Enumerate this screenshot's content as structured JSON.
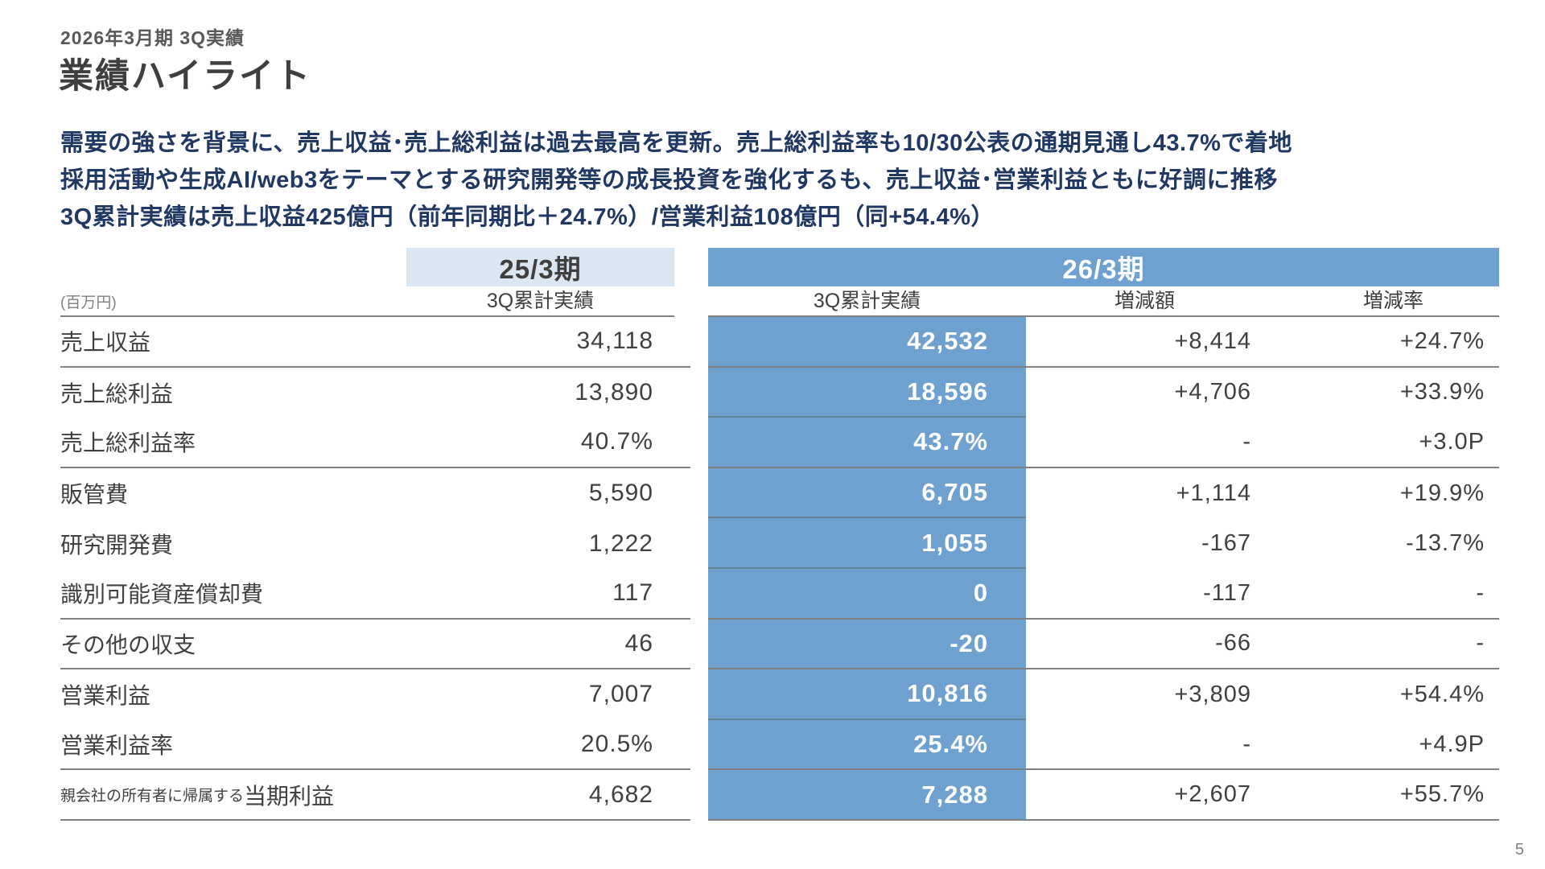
{
  "slide": {
    "eyebrow": "2026年3月期 3Q実績",
    "title": "業績ハイライト",
    "lead": [
      "需要の強さを背景に、売上収益･売上総利益は過去最高を更新。売上総利益率も10/30公表の通期見通し43.7%で着地",
      "採用活動や生成AI/web3をテーマとする研究開発等の成長投資を強化するも、売上収益･営業利益ともに好調に推移",
      "3Q累計実績は売上収益425億円（前年同期比＋24.7%）/営業利益108億円（同+54.4%）"
    ],
    "page_number": "5"
  },
  "table": {
    "unit": "(百万円)",
    "groups": {
      "prev": "25/3期",
      "cur": "26/3期"
    },
    "subheaders": {
      "prev_actual": "3Q累計実績",
      "cur_actual": "3Q累計実績",
      "diff": "増減額",
      "rate": "増減率"
    },
    "rows": [
      {
        "label_prefix": "",
        "label": "売上収益",
        "prev": "34,118",
        "cur": "42,532",
        "diff": "+8,414",
        "rate": "+24.7%"
      },
      {
        "label_prefix": "",
        "label": "売上総利益",
        "prev": "13,890",
        "cur": "18,596",
        "diff": "+4,706",
        "rate": "+33.9%"
      },
      {
        "label_prefix": "",
        "label": "売上総利益率",
        "prev": "40.7%",
        "cur": "43.7%",
        "diff": "-",
        "rate": "+3.0P"
      },
      {
        "label_prefix": "",
        "label": "販管費",
        "prev": "5,590",
        "cur": "6,705",
        "diff": "+1,114",
        "rate": "+19.9%"
      },
      {
        "label_prefix": "",
        "label": "研究開発費",
        "prev": "1,222",
        "cur": "1,055",
        "diff": "-167",
        "rate": "-13.7%"
      },
      {
        "label_prefix": "",
        "label": "識別可能資産償却費",
        "prev": "117",
        "cur": "0",
        "diff": "-117",
        "rate": "-"
      },
      {
        "label_prefix": "",
        "label": "その他の収支",
        "prev": "46",
        "cur": "-20",
        "diff": "-66",
        "rate": "-"
      },
      {
        "label_prefix": "",
        "label": "営業利益",
        "prev": "7,007",
        "cur": "10,816",
        "diff": "+3,809",
        "rate": "+54.4%"
      },
      {
        "label_prefix": "",
        "label": "営業利益率",
        "prev": "20.5%",
        "cur": "25.4%",
        "diff": "-",
        "rate": "+4.9P"
      },
      {
        "label_prefix": "親会社の所有者に帰属する",
        "label": "当期利益",
        "prev": "4,682",
        "cur": "7,288",
        "diff": "+2,607",
        "rate": "+55.7%"
      }
    ],
    "colors": {
      "accent_blue": "#6EA1D0",
      "accent_light_blue": "#DAE7F3",
      "lead_navy": "#1F3864",
      "line_gray": "#808080"
    }
  }
}
